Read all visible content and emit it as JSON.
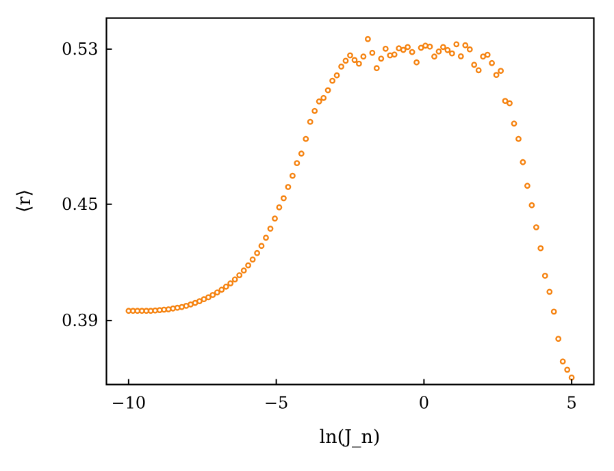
{
  "chart_data": {
    "type": "scatter",
    "xlabel": "ln(J_n)",
    "ylabel": "⟨r⟩",
    "xlim": [
      -10.75,
      5.75
    ],
    "ylim": [
      0.357,
      0.546
    ],
    "xticks": [
      {
        "value": -10,
        "label": "−10"
      },
      {
        "value": -5,
        "label": "−5"
      },
      {
        "value": 0,
        "label": "0"
      },
      {
        "value": 5,
        "label": "5"
      }
    ],
    "yticks": [
      {
        "value": 0.39,
        "label": "0.39"
      },
      {
        "value": 0.45,
        "label": "0.45"
      },
      {
        "value": 0.53,
        "label": "0.53"
      }
    ],
    "grid": false,
    "legend": "none",
    "marker": "open-circle",
    "color": "#f5820f",
    "series": [
      {
        "x": [
          -10.0,
          -9.85,
          -9.7,
          -9.55,
          -9.4,
          -9.25,
          -9.1,
          -8.95,
          -8.8,
          -8.65,
          -8.5,
          -8.35,
          -8.2,
          -8.05,
          -7.9,
          -7.75,
          -7.6,
          -7.45,
          -7.3,
          -7.15,
          -7.0,
          -6.85,
          -6.7,
          -6.55,
          -6.4,
          -6.25,
          -6.1,
          -5.95,
          -5.8,
          -5.65,
          -5.5,
          -5.35,
          -5.2,
          -5.05,
          -4.9,
          -4.75,
          -4.6,
          -4.45,
          -4.3,
          -4.15,
          -4.0,
          -3.85,
          -3.7,
          -3.55,
          -3.4,
          -3.25,
          -3.1,
          -2.95,
          -2.8,
          -2.65,
          -2.5,
          -2.35,
          -2.2,
          -2.05,
          -1.9,
          -1.75,
          -1.6,
          -1.45,
          -1.3,
          -1.15,
          -1.0,
          -0.85,
          -0.7,
          -0.55,
          -0.4,
          -0.25,
          -0.1,
          0.05,
          0.2,
          0.35,
          0.5,
          0.65,
          0.8,
          0.95,
          1.1,
          1.25,
          1.4,
          1.55,
          1.7,
          1.85,
          2.0,
          2.15,
          2.3,
          2.45,
          2.6,
          2.75,
          2.9,
          3.05,
          3.2,
          3.35,
          3.5,
          3.65,
          3.8,
          3.95,
          4.1,
          4.25,
          4.4,
          4.55,
          4.7,
          4.85,
          5.0
        ],
        "y": [
          0.395,
          0.395,
          0.395,
          0.395,
          0.395,
          0.395,
          0.3952,
          0.3954,
          0.3956,
          0.3958,
          0.3962,
          0.3966,
          0.397,
          0.3976,
          0.3983,
          0.3991,
          0.4,
          0.401,
          0.402,
          0.4032,
          0.4045,
          0.4059,
          0.4075,
          0.4092,
          0.4112,
          0.4134,
          0.4158,
          0.4185,
          0.4215,
          0.4248,
          0.4285,
          0.4327,
          0.4374,
          0.4426,
          0.4484,
          0.4531,
          0.4589,
          0.4647,
          0.4712,
          0.4761,
          0.4837,
          0.4925,
          0.4981,
          0.503,
          0.5048,
          0.5088,
          0.5137,
          0.5165,
          0.521,
          0.524,
          0.5268,
          0.5244,
          0.5225,
          0.5262,
          0.5352,
          0.5281,
          0.5202,
          0.5251,
          0.5302,
          0.5268,
          0.5272,
          0.5304,
          0.5296,
          0.5311,
          0.5285,
          0.5232,
          0.5307,
          0.5318,
          0.5313,
          0.5262,
          0.5288,
          0.5311,
          0.5295,
          0.5278,
          0.5325,
          0.5263,
          0.532,
          0.5299,
          0.5219,
          0.5191,
          0.5262,
          0.5271,
          0.5228,
          0.5167,
          0.5188,
          0.5033,
          0.5021,
          0.4916,
          0.4837,
          0.4717,
          0.4595,
          0.4495,
          0.4381,
          0.4273,
          0.4131,
          0.4048,
          0.3946,
          0.3806,
          0.3689,
          0.3646,
          0.3606
        ]
      }
    ]
  }
}
